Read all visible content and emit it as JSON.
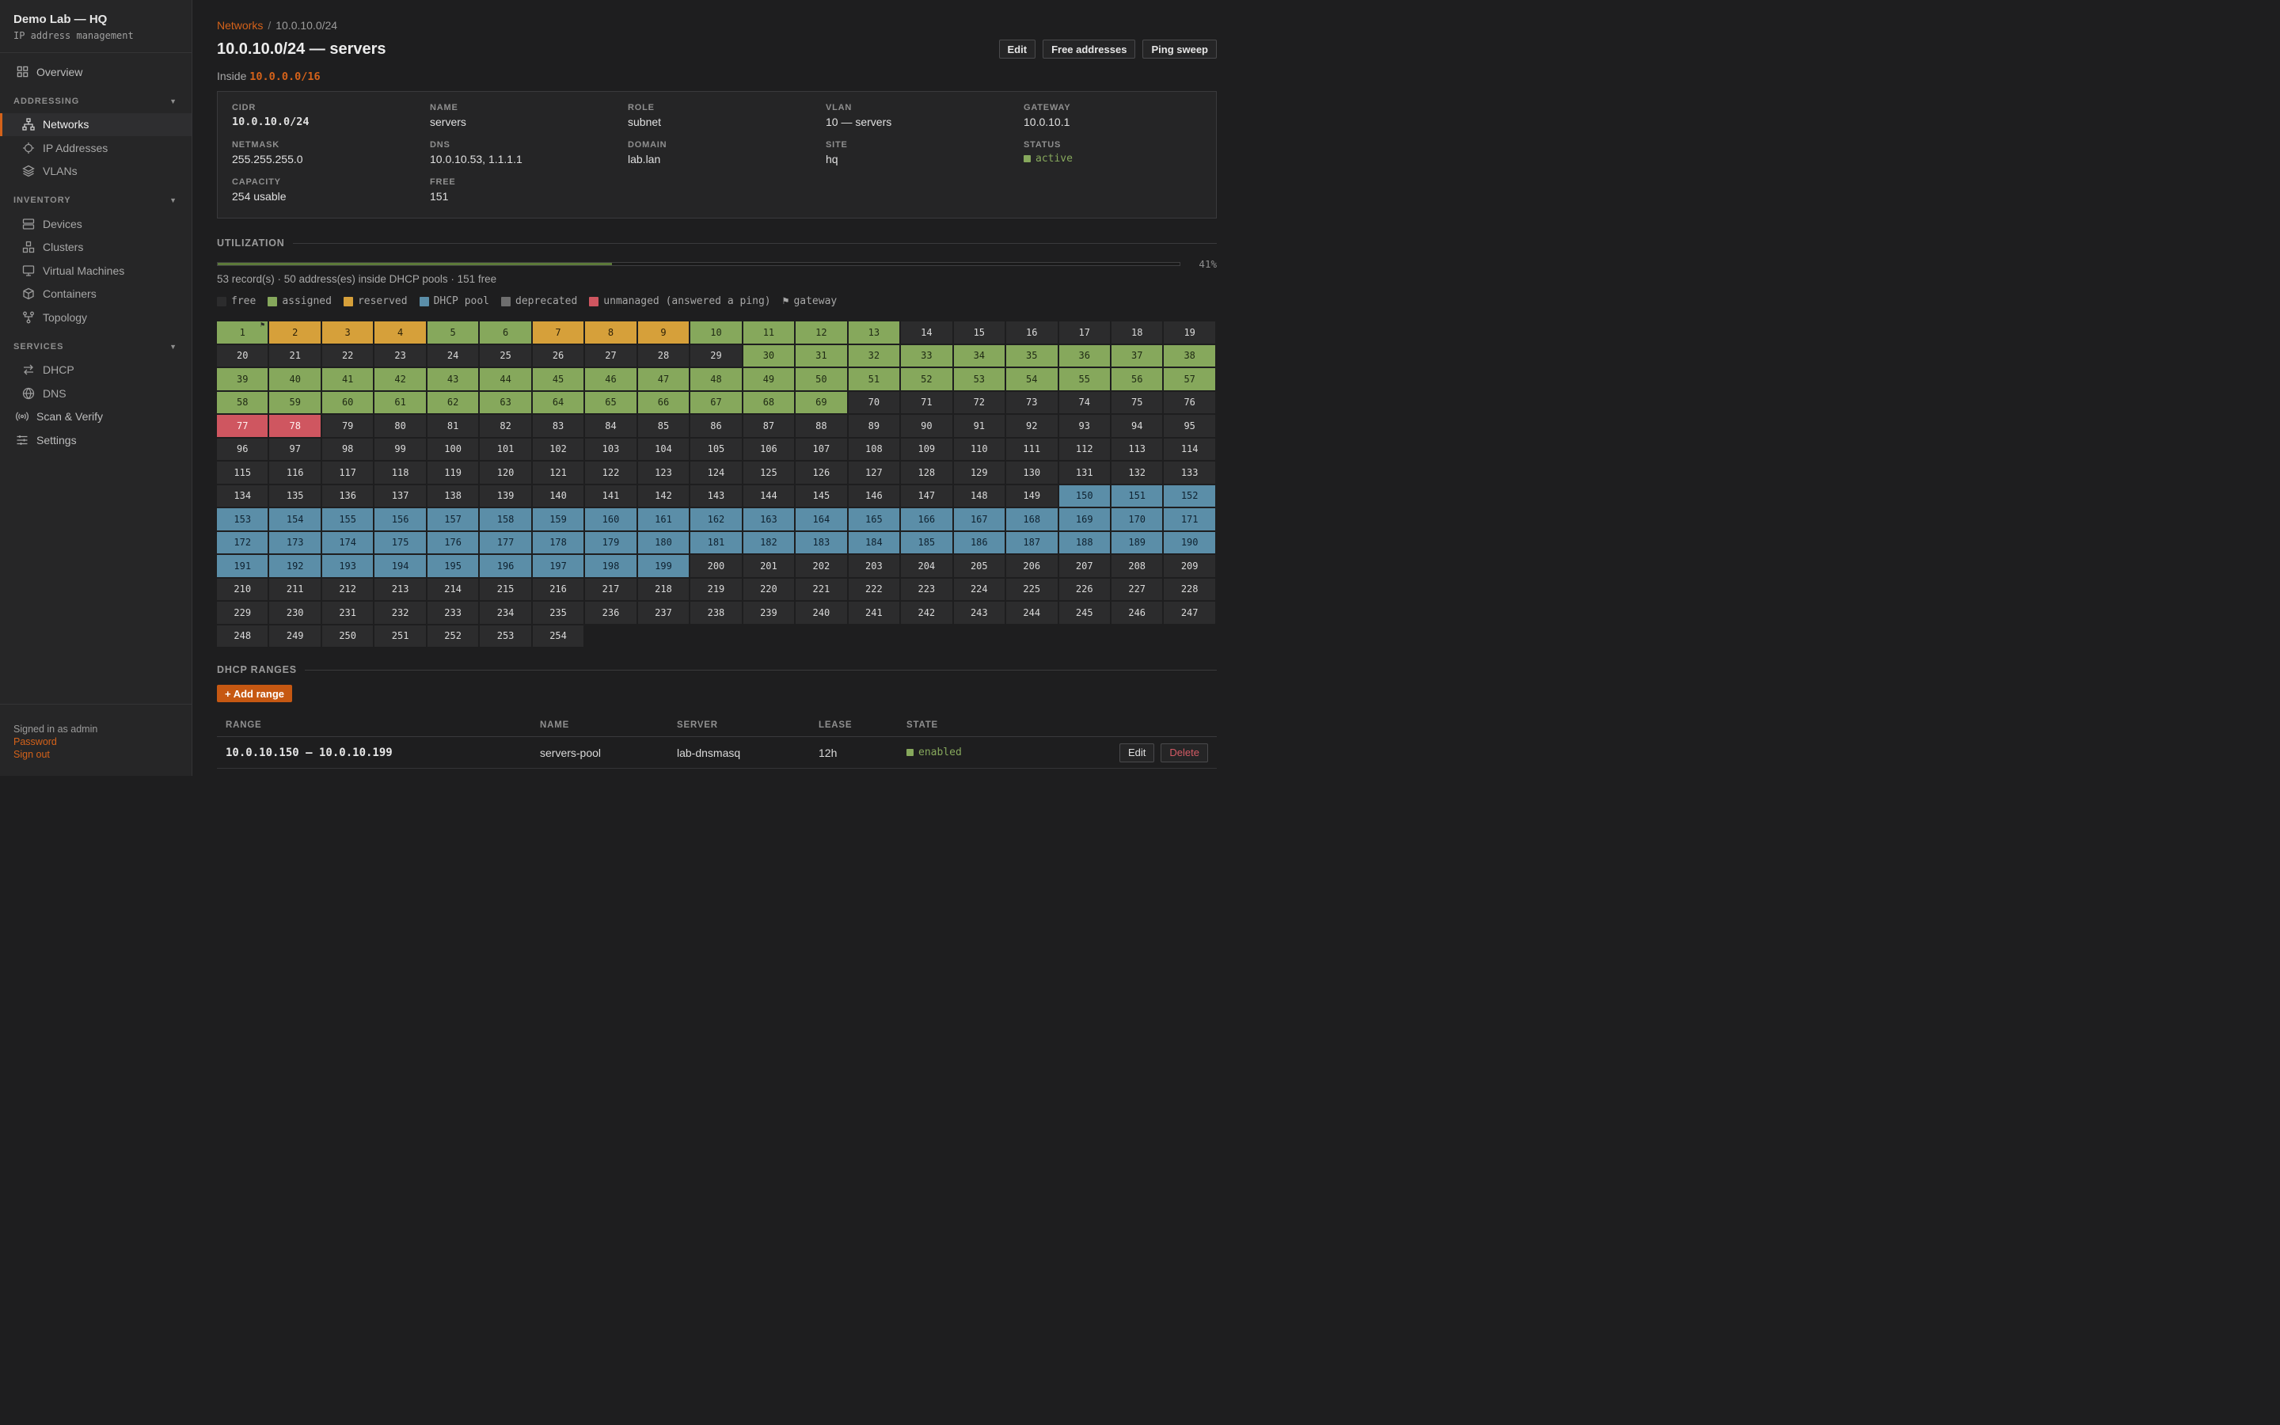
{
  "sidebar": {
    "brand_title": "Demo Lab — HQ",
    "brand_sub": "IP address management",
    "overview": "Overview",
    "sections": {
      "addressing": "ADDRESSING",
      "inventory": "INVENTORY",
      "services": "SERVICES"
    },
    "addressing_items": [
      "Networks",
      "IP Addresses",
      "VLANs"
    ],
    "inventory_items": [
      "Devices",
      "Clusters",
      "Virtual Machines",
      "Containers",
      "Topology"
    ],
    "services_items": [
      "DHCP",
      "DNS"
    ],
    "scan": "Scan & Verify",
    "settings": "Settings",
    "footer": {
      "signed_in": "Signed in as admin",
      "password": "Password",
      "sign_out": "Sign out"
    }
  },
  "breadcrumb": {
    "root": "Networks",
    "sep": "/",
    "current": "10.0.10.0/24"
  },
  "page_title": "10.0.10.0/24 — servers",
  "actions": {
    "edit": "Edit",
    "free": "Free addresses",
    "ping": "Ping sweep"
  },
  "inside": {
    "label": "Inside",
    "parent": "10.0.0.0/16"
  },
  "details": {
    "cidr": {
      "label": "CIDR",
      "value": "10.0.10.0/24"
    },
    "name": {
      "label": "NAME",
      "value": "servers"
    },
    "role": {
      "label": "ROLE",
      "value": "subnet"
    },
    "vlan": {
      "label": "VLAN",
      "value": "10 — servers"
    },
    "gateway": {
      "label": "GATEWAY",
      "value": "10.0.10.1"
    },
    "netmask": {
      "label": "NETMASK",
      "value": "255.255.255.0"
    },
    "dns": {
      "label": "DNS",
      "value": "10.0.10.53, 1.1.1.1"
    },
    "domain": {
      "label": "DOMAIN",
      "value": "lab.lan"
    },
    "site": {
      "label": "SITE",
      "value": "hq"
    },
    "status": {
      "label": "STATUS",
      "value": "active"
    },
    "capacity": {
      "label": "CAPACITY",
      "value": "254 usable"
    },
    "free": {
      "label": "FREE",
      "value": "151"
    }
  },
  "utilization": {
    "heading": "UTILIZATION",
    "percent_label": "41%",
    "fraction": 0.41,
    "summary": "53 record(s) · 50 address(es) inside DHCP pools · 151 free"
  },
  "legend": {
    "free": "free",
    "assigned": "assigned",
    "reserved": "reserved",
    "dhcp": "DHCP pool",
    "deprecated": "deprecated",
    "unmanaged": "unmanaged (answered a ping)",
    "gateway": "gateway"
  },
  "colors": {
    "accent": "#d4621a",
    "free": "#2c2c2d",
    "assigned": "#86a85c",
    "reserved": "#d6a03a",
    "dhcp": "#5b8ea8",
    "deprecated": "#6e6e6e",
    "unmanaged": "#cf5660"
  },
  "ip_grid": {
    "total": 254,
    "gateway": 1,
    "reserved": [
      2,
      3,
      4,
      7,
      8,
      9
    ],
    "assigned_ranges": [
      [
        1,
        1
      ],
      [
        5,
        6
      ],
      [
        10,
        13
      ],
      [
        30,
        69
      ]
    ],
    "unmanaged": [
      77,
      78
    ],
    "dhcp_range": [
      150,
      199
    ]
  },
  "dhcp": {
    "heading": "DHCP RANGES",
    "add": "+ Add range",
    "columns": {
      "range": "RANGE",
      "name": "NAME",
      "server": "SERVER",
      "lease": "LEASE",
      "state": "STATE"
    },
    "rows": [
      {
        "range": "10.0.10.150 – 10.0.10.199",
        "name": "servers-pool",
        "server": "lab-dnsmasq",
        "lease": "12h",
        "state": "enabled",
        "edit": "Edit",
        "delete": "Delete"
      }
    ]
  }
}
